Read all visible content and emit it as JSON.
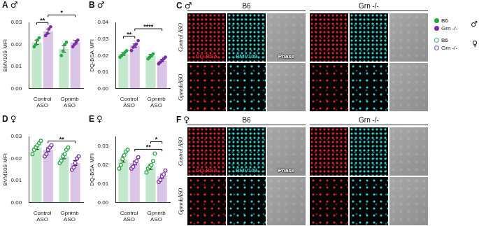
{
  "chart_data": [
    {
      "panel": "A",
      "sex": "♂",
      "type": "bar",
      "y_label": "BMV109 MFI",
      "categories": [
        "Control ASO",
        "Gpnmb ASO"
      ],
      "ylim": [
        0,
        0.03
      ],
      "yticks": [
        {
          "value": 0,
          "label": "0.00"
        },
        0.01,
        0.02,
        0.03
      ],
      "marker": "circle",
      "series": [
        {
          "name": "B6",
          "color": "#27a844",
          "values": [
            0.021,
            0.018
          ],
          "errors": [
            0.001,
            0.0015
          ],
          "points": [
            [
              0.019,
              0.02,
              0.022,
              0.023
            ],
            [
              0.015,
              0.017,
              0.02,
              0.021
            ]
          ]
        },
        {
          "name": "Grn -/-",
          "color": "#7d2ea8",
          "values": [
            0.026,
            0.021
          ],
          "errors": [
            0.001,
            0.0008
          ],
          "points": [
            [
              0.024,
              0.025,
              0.027,
              0.028
            ],
            [
              0.019,
              0.02,
              0.021,
              0.022
            ]
          ]
        }
      ],
      "significance": [
        {
          "from": [
            0,
            0
          ],
          "to": [
            0,
            1
          ],
          "label": "**"
        },
        {
          "from": [
            0,
            1
          ],
          "to": [
            1,
            1
          ],
          "label": "*"
        }
      ]
    },
    {
      "panel": "B",
      "sex": "♂",
      "type": "bar",
      "y_label": "DQ-BSA MFI",
      "categories": [
        "Control ASO",
        "Gpnmb ASO"
      ],
      "ylim": [
        0,
        0.04
      ],
      "yticks": [
        {
          "value": 0,
          "label": "0.00"
        },
        0.01,
        0.02,
        0.03,
        0.04
      ],
      "marker": "circle",
      "series": [
        {
          "name": "B6",
          "color": "#27a844",
          "values": [
            0.021,
            0.02
          ],
          "errors": [
            0.0008,
            0.0007
          ],
          "points": [
            [
              0.019,
              0.02,
              0.021,
              0.022,
              0.023
            ],
            [
              0.018,
              0.019,
              0.02,
              0.021
            ]
          ]
        },
        {
          "name": "Grn -/-",
          "color": "#7d2ea8",
          "values": [
            0.026,
            0.017
          ],
          "errors": [
            0.001,
            0.0008
          ],
          "points": [
            [
              0.023,
              0.025,
              0.026,
              0.027,
              0.029
            ],
            [
              0.015,
              0.016,
              0.017,
              0.018,
              0.019
            ]
          ]
        }
      ],
      "significance": [
        {
          "from": [
            0,
            0
          ],
          "to": [
            0,
            1
          ],
          "label": "**"
        },
        {
          "from": [
            0,
            1
          ],
          "to": [
            1,
            1
          ],
          "label": "****"
        }
      ]
    },
    {
      "panel": "D",
      "sex": "♀",
      "type": "bar",
      "y_label": "BVM109 MFI",
      "categories": [
        "Control ASO",
        "Gpnmb ASO"
      ],
      "ylim": [
        0,
        0.03
      ],
      "yticks": [
        {
          "value": 0,
          "label": "0.00"
        },
        0.01,
        0.02,
        0.03
      ],
      "marker": "open_circle",
      "series": [
        {
          "name": "B6",
          "color": "#27a844",
          "values": [
            0.025,
            0.021
          ],
          "errors": [
            0.0009,
            0.0011
          ],
          "points": [
            [
              0.022,
              0.024,
              0.025,
              0.026,
              0.027,
              0.028
            ],
            [
              0.018,
              0.019,
              0.021,
              0.022,
              0.024,
              0.025
            ]
          ]
        },
        {
          "name": "Grn -/-",
          "color": "#7d2ea8",
          "values": [
            0.024,
            0.018
          ],
          "errors": [
            0.0009,
            0.0011
          ],
          "points": [
            [
              0.021,
              0.022,
              0.024,
              0.025,
              0.026
            ],
            [
              0.015,
              0.016,
              0.018,
              0.02,
              0.021
            ]
          ]
        }
      ],
      "significance": [
        {
          "from": [
            0,
            1
          ],
          "to": [
            1,
            1
          ],
          "label": "**"
        }
      ]
    },
    {
      "panel": "E",
      "sex": "♀",
      "type": "bar",
      "y_label": "DQ-BSA MFI",
      "categories": [
        "Control ASO",
        "Gpnmb ASO"
      ],
      "ylim": [
        0,
        0.035
      ],
      "yticks": [
        {
          "value": 0,
          "label": "0.00"
        },
        0.01,
        0.02,
        0.03
      ],
      "marker": "open_circle",
      "series": [
        {
          "name": "B6",
          "color": "#27a844",
          "values": [
            0.023,
            0.019
          ],
          "errors": [
            0.0016,
            0.0014
          ],
          "points": [
            [
              0.018,
              0.02,
              0.023,
              0.025,
              0.027,
              0.028
            ],
            [
              0.016,
              0.018,
              0.019,
              0.02,
              0.022,
              0.026
            ]
          ]
        },
        {
          "name": "Grn -/-",
          "color": "#7d2ea8",
          "values": [
            0.021,
            0.014
          ],
          "errors": [
            0.001,
            0.0011
          ],
          "points": [
            [
              0.018,
              0.019,
              0.021,
              0.022,
              0.024
            ],
            [
              0.011,
              0.012,
              0.014,
              0.015,
              0.017
            ]
          ]
        }
      ],
      "significance": [
        {
          "from": [
            0,
            1
          ],
          "to": [
            1,
            1
          ],
          "label": "**"
        },
        {
          "from": [
            1,
            0
          ],
          "to": [
            1,
            1
          ],
          "label": "*"
        }
      ]
    }
  ],
  "images": [
    {
      "panel": "C",
      "sex": "♂",
      "groups": [
        "B6",
        "Grn -/-"
      ],
      "rows": [
        "Control ASO",
        "GpnmbASO"
      ],
      "channels": [
        {
          "name": "DQ-BSA",
          "color": "#e3232c"
        },
        {
          "name": "BMV109",
          "color": "#2fd0d0"
        },
        {
          "name": "Phase",
          "color": "#ffffff"
        }
      ]
    },
    {
      "panel": "F",
      "sex": "♀",
      "groups": [
        "B6",
        "Grn -/-"
      ],
      "rows": [
        "Control ASO",
        "GpnmbASO"
      ],
      "channels": [
        {
          "name": "DQ-BSA",
          "color": "#e3232c"
        },
        {
          "name": "BMV109",
          "color": "#2fd0d0"
        },
        {
          "name": "Phase",
          "color": "#ffffff"
        }
      ]
    }
  ],
  "legend": [
    {
      "sex": "♂",
      "marker": "circle",
      "series": [
        {
          "name": "B6",
          "color": "#27a844"
        },
        {
          "name": "Grn -/-",
          "color": "#7d2ea8"
        }
      ]
    },
    {
      "sex": "♀",
      "marker": "open_circle",
      "series": [
        {
          "name": "B6",
          "color": "#27a844"
        },
        {
          "name": "Grn -/-",
          "color": "#7d2ea8"
        }
      ]
    }
  ]
}
